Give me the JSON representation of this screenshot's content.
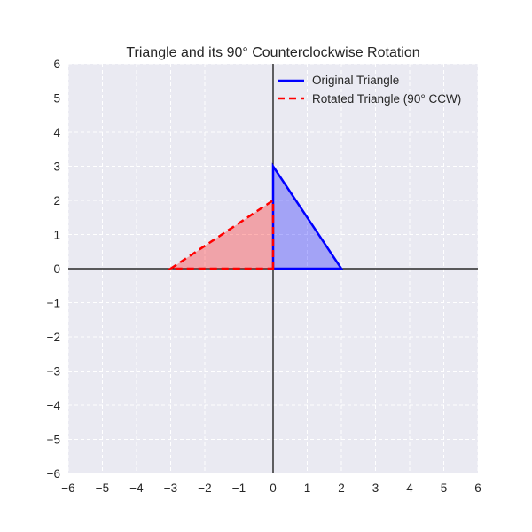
{
  "chart_data": {
    "type": "line",
    "title": "Triangle and its 90° Counterclockwise Rotation",
    "xlabel": "",
    "ylabel": "",
    "xlim": [
      -6,
      6
    ],
    "ylim": [
      -6,
      6
    ],
    "grid": true,
    "legend_position": "upper right",
    "x_ticks": [
      "−6",
      "−5",
      "−4",
      "−3",
      "−2",
      "−1",
      "0",
      "1",
      "2",
      "3",
      "4",
      "5",
      "6"
    ],
    "y_ticks": [
      "6",
      "5",
      "4",
      "3",
      "2",
      "1",
      "0",
      "−1",
      "−2",
      "−3",
      "−4",
      "−5",
      "−6"
    ],
    "series": [
      {
        "name": "Original Triangle",
        "style": "solid",
        "color": "#0000ff",
        "fill": "#0000ff",
        "fill_alpha": 0.3,
        "points": [
          [
            0,
            0
          ],
          [
            2,
            0
          ],
          [
            0,
            3
          ]
        ]
      },
      {
        "name": "Rotated Triangle (90° CCW)",
        "style": "dashed",
        "color": "#ff0000",
        "fill": "#ff0000",
        "fill_alpha": 0.3,
        "points": [
          [
            0,
            0
          ],
          [
            0,
            2
          ],
          [
            -3,
            0
          ]
        ]
      }
    ]
  },
  "colors": {
    "plot_background": "#eaeaf2",
    "grid": "#ffffff",
    "axis_lines": "#000000"
  }
}
